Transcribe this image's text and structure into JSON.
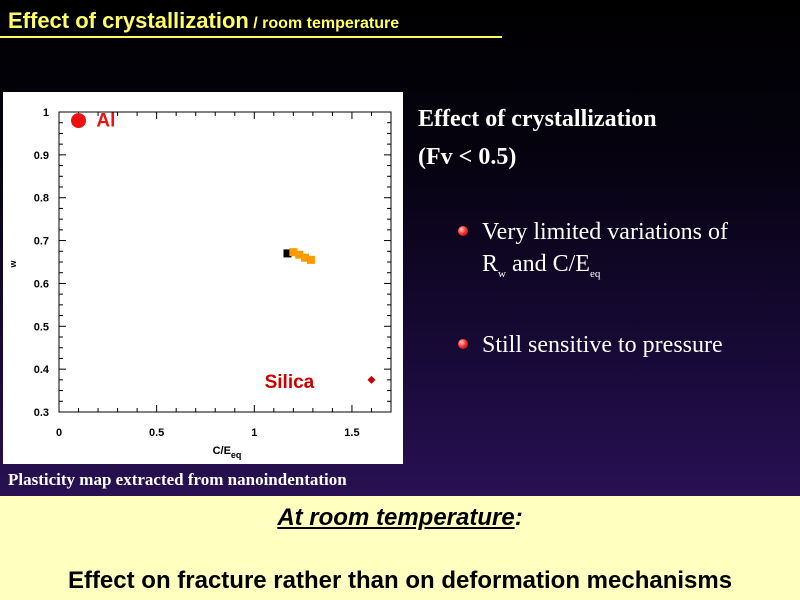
{
  "slide": {
    "title_main": "Effect of crystallization",
    "title_sub": " / room temperature",
    "caption": "Plasticity map extracted from nanoindentation",
    "right": {
      "heading_line1": "Effect of crystallization",
      "heading_line2": "(Fv < 0.5)",
      "bullet1_text_a": " Very limited variations of",
      "bullet1_text_b1": "R",
      "bullet1_sub1": "w",
      "bullet1_text_b2": " and C/E",
      "bullet1_sub2": "eq",
      "bullet2_text": " Still sensitive to pressure"
    },
    "bottom": {
      "line1_italic": "At room temperature",
      "line1_colon": ":",
      "line2": "Effect on fracture rather than on deformation mechanisms"
    },
    "bullet_icon": "red-sphere-bullet"
  },
  "chart_data": {
    "type": "scatter",
    "xlabel_main": "C/E",
    "xlabel_sub": "eq",
    "ylabel": "w",
    "xlim": [
      0,
      1.7
    ],
    "ylim": [
      0.3,
      1.0
    ],
    "xticks": [
      0,
      0.5,
      1,
      1.5
    ],
    "xtick_labels": [
      "0",
      "0.5",
      "1",
      "1.5"
    ],
    "yticks": [
      0.3,
      0.4,
      0.5,
      0.6,
      0.7,
      0.8,
      0.9,
      1
    ],
    "ytick_labels": [
      "0.3",
      "0.4",
      "0.5",
      "0.6",
      "0.7",
      "0.8",
      "0.9",
      "1"
    ],
    "grid": false,
    "annotations": [
      {
        "text": "Al",
        "x": 0.24,
        "y": 0.98,
        "color": "#ee1111"
      },
      {
        "text": "Silica",
        "x": 1.18,
        "y": 0.37,
        "color": "#cc0000"
      }
    ],
    "series": [
      {
        "marker": "circle",
        "color": "#ee1111",
        "x": [
          0.1
        ],
        "y": [
          0.98
        ]
      },
      {
        "marker": "diamond",
        "color": "#cc0000",
        "x": [
          1.6
        ],
        "y": [
          0.375
        ]
      },
      {
        "marker": "square",
        "color": "#000000",
        "x": [
          1.17
        ],
        "y": [
          0.67
        ]
      },
      {
        "marker": "square",
        "color": "#ff9900",
        "x": [
          1.2,
          1.23,
          1.26,
          1.29
        ],
        "y": [
          0.673,
          0.667,
          0.66,
          0.655
        ]
      }
    ]
  }
}
